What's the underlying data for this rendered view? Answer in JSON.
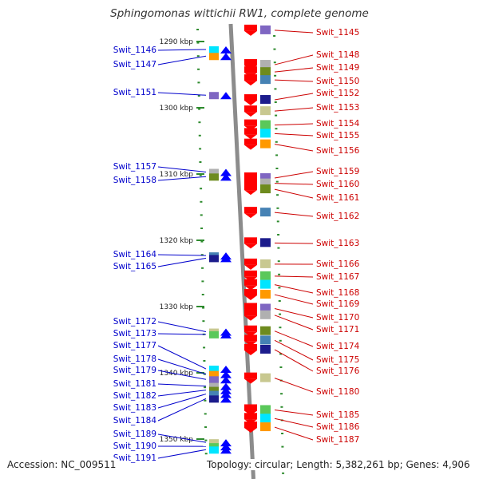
{
  "title": "Sphingomonas wittichii RW1, complete genome",
  "footer": {
    "accession": "Accession: NC_009511",
    "summary": "Topology: circular; Length: 5,382,261 bp; Genes: 4,906"
  },
  "colors": {
    "backbone": "#8c8c8c",
    "tick": "#2e8b2e",
    "forward_gene": "#ff0000",
    "reverse_gene": "#0000ff",
    "left_label": "#0000cc",
    "right_label": "#cc0000"
  },
  "ruler": {
    "unit": "kbp",
    "ticks": [
      {
        "label": "1290 kbp",
        "kbp": 1290
      },
      {
        "label": "1300 kbp",
        "kbp": 1300
      },
      {
        "label": "1310 kbp",
        "kbp": 1310
      },
      {
        "label": "1320 kbp",
        "kbp": 1320
      },
      {
        "label": "1330 kbp",
        "kbp": 1330
      },
      {
        "label": "1340 kbp",
        "kbp": 1340
      },
      {
        "label": "1350 kbp",
        "kbp": 1350
      }
    ]
  },
  "reverse_genes": [
    {
      "label": "Swit_1146",
      "kbp": 1291.2
    },
    {
      "label": "Swit_1147",
      "kbp": 1292.2
    },
    {
      "label": "Swit_1151",
      "kbp": 1298.1
    },
    {
      "label": "Swit_1157",
      "kbp": 1309.7
    },
    {
      "label": "Swit_1158",
      "kbp": 1310.4
    },
    {
      "label": "Swit_1164",
      "kbp": 1322.3
    },
    {
      "label": "Swit_1165",
      "kbp": 1322.7
    },
    {
      "label": "Swit_1172",
      "kbp": 1333.8
    },
    {
      "label": "Swit_1173",
      "kbp": 1334.2
    },
    {
      "label": "Swit_1177",
      "kbp": 1339.4
    },
    {
      "label": "Swit_1178",
      "kbp": 1340.2
    },
    {
      "label": "Swit_1179",
      "kbp": 1341.0
    },
    {
      "label": "Swit_1181",
      "kbp": 1342.0
    },
    {
      "label": "Swit_1182",
      "kbp": 1342.6
    },
    {
      "label": "Swit_1183",
      "kbp": 1343.2
    },
    {
      "label": "Swit_1184",
      "kbp": 1343.9
    },
    {
      "label": "Swit_1189",
      "kbp": 1350.5
    },
    {
      "label": "Swit_1190",
      "kbp": 1351.1
    },
    {
      "label": "Swit_1191",
      "kbp": 1351.6
    }
  ],
  "forward_genes": [
    {
      "label": "Swit_1145",
      "kbp": 1288.3
    },
    {
      "label": "Swit_1148",
      "kbp": 1293.5
    },
    {
      "label": "Swit_1149",
      "kbp": 1294.6
    },
    {
      "label": "Swit_1150",
      "kbp": 1295.8
    },
    {
      "label": "Swit_1152",
      "kbp": 1298.8
    },
    {
      "label": "Swit_1153",
      "kbp": 1300.5
    },
    {
      "label": "Swit_1154",
      "kbp": 1302.6
    },
    {
      "label": "Swit_1155",
      "kbp": 1303.9
    },
    {
      "label": "Swit_1156",
      "kbp": 1305.5
    },
    {
      "label": "Swit_1159",
      "kbp": 1310.6
    },
    {
      "label": "Swit_1160",
      "kbp": 1311.4
    },
    {
      "label": "Swit_1161",
      "kbp": 1312.3
    },
    {
      "label": "Swit_1162",
      "kbp": 1315.8
    },
    {
      "label": "Swit_1163",
      "kbp": 1320.4
    },
    {
      "label": "Swit_1166",
      "kbp": 1323.6
    },
    {
      "label": "Swit_1167",
      "kbp": 1325.4
    },
    {
      "label": "Swit_1168",
      "kbp": 1326.7
    },
    {
      "label": "Swit_1169",
      "kbp": 1328.2
    },
    {
      "label": "Swit_1170",
      "kbp": 1330.3
    },
    {
      "label": "Swit_1171",
      "kbp": 1331.3
    },
    {
      "label": "Swit_1174",
      "kbp": 1333.7
    },
    {
      "label": "Swit_1175",
      "kbp": 1335.1
    },
    {
      "label": "Swit_1176",
      "kbp": 1336.5
    },
    {
      "label": "Swit_1180",
      "kbp": 1340.8
    },
    {
      "label": "Swit_1185",
      "kbp": 1345.6
    },
    {
      "label": "Swit_1186",
      "kbp": 1346.9
    },
    {
      "label": "Swit_1187",
      "kbp": 1348.2
    }
  ]
}
